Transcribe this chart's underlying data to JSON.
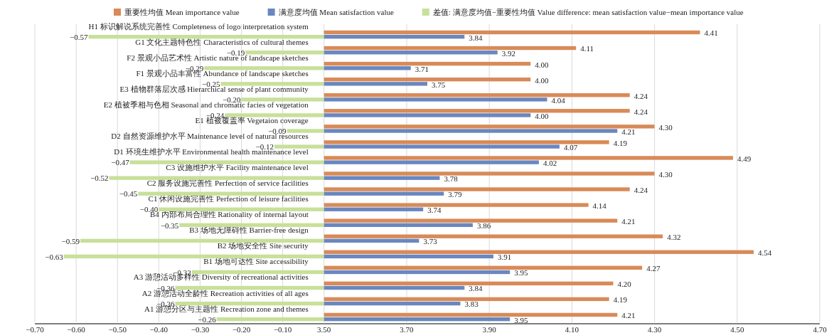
{
  "chart_data": [
    {
      "type": "bar",
      "orientation": "horizontal",
      "legend": "top",
      "grid": "x",
      "categories": [
        "H1 标识解说系统完善性 Completeness of logo interpretation system",
        "G1 文化主题特色性 Characteristics of cultural themes",
        "F2 景观小品艺术性 Artistic nature of landscape sketches",
        "F1 景观小品丰富性 Abundance of landscape sketches",
        "E3 植物群落层次感 Hierarchical sense of plant community",
        "E2 植被季相与色相 Seasonal and chromatic facies of vegetation",
        "E1 植被覆盖率 Vegetaion coverage",
        "D2 自然资源维护水平 Maintenance level of natural resources",
        "D1 环境生维护水平 Environmental health maintenance level",
        "C3 设施维护水平 Facility maintenance level",
        "C2 服务设施完善性 Perfection of service facilities",
        "C1 休闲设施完善性 Perfection of leisure facilities",
        "B4 内部布局合理性 Rationality of internal layout",
        "B3 场地无障碍性 Barrier-free design",
        "B2 场地安全性 Site security",
        "B1 场地可达性 Site accessibility",
        "A3 游憩活动多样性 Diversity of recreational activities",
        "A2 游憩活动全龄性 Recreation activities of all ages",
        "A1 游憩分区与主题性 Recreation zone and themes"
      ],
      "series": [
        {
          "name": "差值: 满意度均值−重要性均值 Value difference: mean satisfaction value−mean importance value",
          "color": "#c8e09a",
          "values": [
            -0.57,
            -0.19,
            -0.29,
            -0.25,
            -0.2,
            -0.24,
            -0.09,
            -0.12,
            -0.47,
            -0.52,
            -0.45,
            -0.4,
            -0.35,
            -0.59,
            -0.63,
            -0.32,
            -0.36,
            -0.36,
            -0.26
          ],
          "value_labels": [
            "−0.57",
            "−0.19",
            "−0.29",
            "−0.25",
            "−0.20",
            "−0.24",
            "−0.09",
            "−0.12",
            "−0.47",
            "−0.52",
            "−0.45",
            "−0.40",
            "−0.35",
            "−0.59",
            "−0.63",
            "−0.32",
            "−0.36",
            "−0.36",
            "−0.26"
          ]
        }
      ],
      "xlim": [
        -0.7,
        0
      ],
      "xticks": [
        {
          "value": -0.7,
          "label": "−0.70"
        },
        {
          "value": -0.6,
          "label": "−0.60"
        },
        {
          "value": -0.5,
          "label": "−0.50"
        },
        {
          "value": -0.4,
          "label": "−0.40"
        },
        {
          "value": -0.3,
          "label": "−0.30"
        },
        {
          "value": -0.2,
          "label": "−0.20"
        },
        {
          "value": -0.1,
          "label": "−0.10"
        }
      ]
    },
    {
      "type": "bar",
      "orientation": "horizontal",
      "legend": "top",
      "grid": "x",
      "tick_labels": "x",
      "categories": [
        null,
        null,
        null,
        null,
        null,
        null,
        null,
        null,
        null,
        null,
        null,
        null,
        null,
        null,
        null,
        null,
        null,
        null,
        null
      ],
      "series": [
        {
          "name": "重要性均值 Mean importance value",
          "color": "#d98a58",
          "values": [
            4.41,
            4.11,
            4.0,
            4.0,
            4.24,
            4.24,
            4.3,
            4.19,
            4.49,
            4.3,
            4.24,
            4.14,
            4.21,
            4.32,
            4.54,
            4.27,
            4.2,
            4.19,
            4.21
          ],
          "value_labels": [
            "4.41",
            "4.11",
            "4.00",
            "4.00",
            "4.24",
            "4.24",
            "4.30",
            "4.19",
            "4.49",
            "4.30",
            "4.24",
            "4.14",
            "4.21",
            "4.32",
            "4.54",
            "4.27",
            "4.20",
            "4.19",
            "4.21"
          ]
        },
        {
          "name": "满意度均值 Mean satisfaction value",
          "color": "#6a87bf",
          "values": [
            3.84,
            3.92,
            3.71,
            3.75,
            4.04,
            4.0,
            4.21,
            4.07,
            4.02,
            3.78,
            3.79,
            3.74,
            3.86,
            3.73,
            3.91,
            3.95,
            3.84,
            3.83,
            3.95
          ],
          "value_labels": [
            "3.84",
            "3.92",
            "3.71",
            "3.75",
            "4.04",
            "4.00",
            "4.21",
            "4.07",
            "4.02",
            "3.78",
            "3.79",
            "3.74",
            "3.86",
            "3.73",
            "3.91",
            "3.95",
            "3.84",
            "3.83",
            "3.95"
          ]
        }
      ],
      "xlim": [
        3.5,
        4.7
      ],
      "xticks": [
        {
          "value": 3.5,
          "label": "3.50"
        },
        {
          "value": 3.7,
          "label": "3.70"
        },
        {
          "value": 3.9,
          "label": "3.90"
        },
        {
          "value": 4.1,
          "label": "4.10"
        },
        {
          "value": 4.3,
          "label": "4.30"
        },
        {
          "value": 4.5,
          "label": "4.50"
        },
        {
          "value": 4.7,
          "label": "4.70"
        }
      ]
    }
  ]
}
